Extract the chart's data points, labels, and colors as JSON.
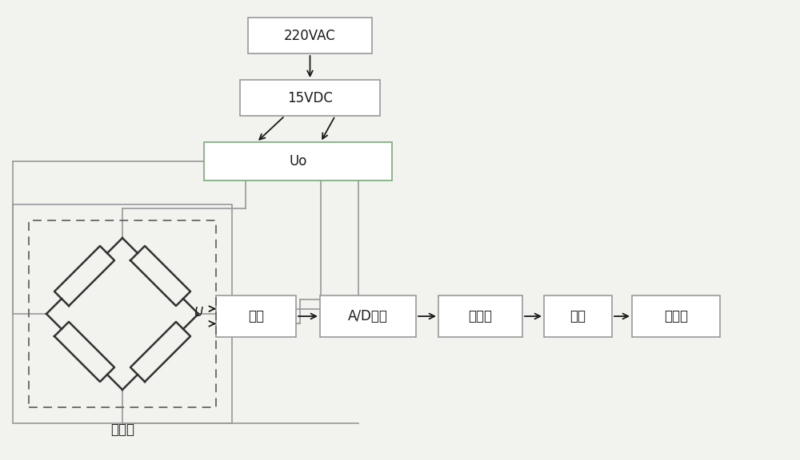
{
  "bg_color": "#f2f2ee",
  "box_face": "#ffffff",
  "box_edge": "#999999",
  "uo_edge": "#7aaa7a",
  "line_color": "#999999",
  "arrow_color": "#1a1a1a",
  "dash_edge": "#666666",
  "text_color": "#1a1a1a",
  "font_size": 12,
  "vac_label": "220VAC",
  "vdc_label": "15VDC",
  "uo_label": "Uo",
  "filter_label": "滤波",
  "adc_label": "A/D转换",
  "mcu_label": "单片机",
  "serial_label": "串口",
  "pc_label": "计算机",
  "sensor_label": "传感器",
  "u_label": "U"
}
